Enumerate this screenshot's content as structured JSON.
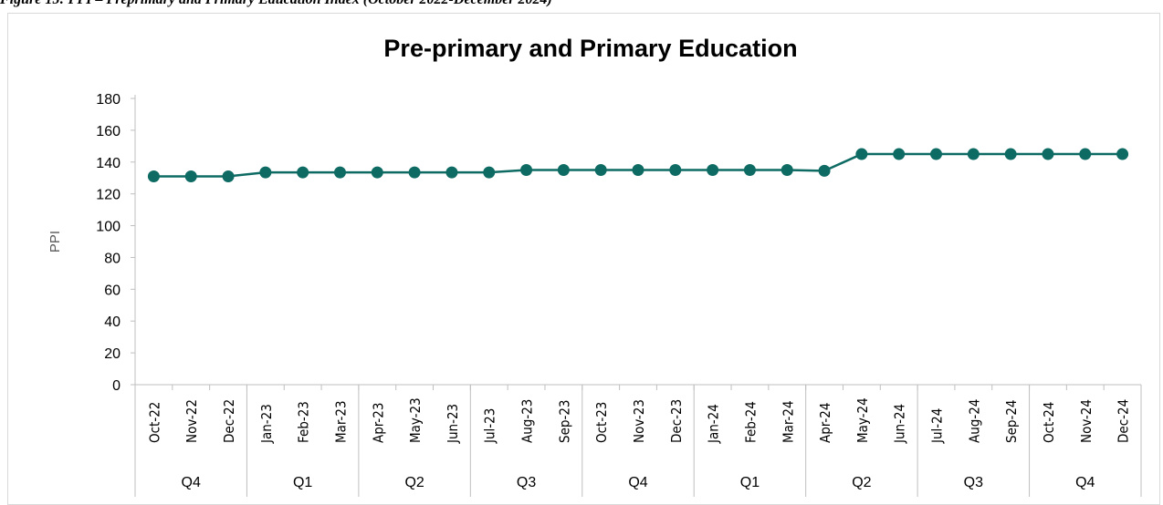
{
  "caption": "Figure 15: PPI – Preprimary and Primary Education  Index (October 2022-December 2024)",
  "chart_data": {
    "type": "line",
    "title": "Pre-primary and Primary Education",
    "ylabel": "PPI",
    "xlabel": "",
    "ylim": [
      0,
      180
    ],
    "yticks": [
      0,
      20,
      40,
      60,
      80,
      100,
      120,
      140,
      160,
      180
    ],
    "grid": false,
    "legend": "none",
    "color": "#0e6b63",
    "categories": [
      "Oct-22",
      "Nov-22",
      "Dec-22",
      "Jan-23",
      "Feb-23",
      "Mar-23",
      "Apr-23",
      "May-23",
      "Jun-23",
      "Jul-23",
      "Aug-23",
      "Sep-23",
      "Oct-23",
      "Nov-23",
      "Dec-23",
      "Jan-24",
      "Feb-24",
      "Mar-24",
      "Apr-24",
      "May-24",
      "Jun-24",
      "Jul-24",
      "Aug-24",
      "Sep-24",
      "Oct-24",
      "Nov-24",
      "Dec-24"
    ],
    "values": [
      131,
      131,
      131,
      133.5,
      133.5,
      133.5,
      133.5,
      133.5,
      133.5,
      133.5,
      135,
      135,
      135,
      135,
      135,
      135,
      135,
      135,
      134.5,
      145,
      145,
      145,
      145,
      145,
      145,
      145,
      145
    ],
    "quarter_groups": [
      {
        "label": "Q4",
        "count": 3
      },
      {
        "label": "Q1",
        "count": 3
      },
      {
        "label": "Q2",
        "count": 3
      },
      {
        "label": "Q3",
        "count": 3
      },
      {
        "label": "Q4",
        "count": 3
      },
      {
        "label": "Q1",
        "count": 3
      },
      {
        "label": "Q2",
        "count": 3
      },
      {
        "label": "Q3",
        "count": 3
      },
      {
        "label": "Q4",
        "count": 3
      }
    ]
  }
}
